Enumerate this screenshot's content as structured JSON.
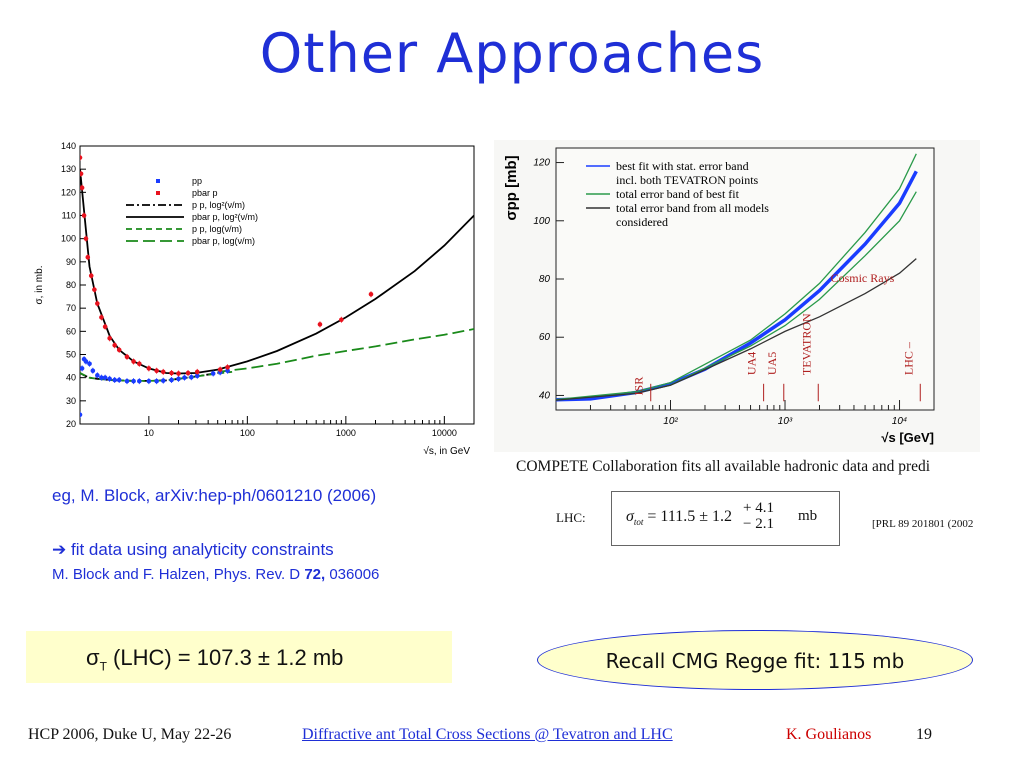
{
  "slide": {
    "title": "Other Approaches",
    "reference_1": "eg, M. Block, arXiv:hep-ph/0601210 (2006)",
    "reference_2_arrow": "➔",
    "reference_2": "fit data using analyticity constraints",
    "reference_3_prefix": "M. Block and F. Halzen, Phys. Rev. D ",
    "reference_3_volume": "72,",
    "reference_3_suffix": " 036006",
    "sigma_result_symbol": "σ",
    "sigma_result_sub": "T",
    "sigma_result_text": " (LHC) =  107.3 ± 1.2 mb",
    "recall_text": "Recall CMG Regge fit: 115 mb",
    "footer": {
      "conference": "HCP 2006, Duke U, May 22-26",
      "link": "Diffractive ant Total Cross Sections @ Tevatron and LHC",
      "author": "K. Goulianos",
      "page": "19"
    }
  },
  "right_panel": {
    "caption": "COMPETE Collaboration fits all available hadronic data and predi",
    "lhc_label": "LHC:",
    "formula_sigma": "σ",
    "formula_sub": "tot",
    "formula_eq": " = 111.5 ± 1.2",
    "formula_plus": "+ 4.1",
    "formula_minus": "− 2.1",
    "formula_unit": "mb",
    "prl": "[PRL 89 201801 (2002"
  },
  "chart_data": [
    {
      "type": "scatter",
      "title": "",
      "xlabel": "√s, in GeV",
      "ylabel": "σ, in mb.",
      "x_scale": "log",
      "xlim": [
        2,
        20000
      ],
      "ylim": [
        20,
        140
      ],
      "x_ticks": [
        10,
        100,
        1000,
        10000
      ],
      "x_tick_labels": [
        "10",
        "100",
        "1000",
        "10000"
      ],
      "y_ticks": [
        20,
        30,
        40,
        50,
        60,
        70,
        80,
        90,
        100,
        110,
        120,
        130,
        140
      ],
      "legend_position": "top-center",
      "legend": [
        {
          "label": "pp",
          "style": "marker",
          "color": "#1a3cff"
        },
        {
          "label": "pbar p",
          "style": "marker",
          "color": "#e8121e"
        },
        {
          "label": "p p,       log²(ν/m)",
          "style": "dashdot",
          "color": "#000000"
        },
        {
          "label": "pbar p, log²(ν/m)",
          "style": "solid",
          "color": "#000000"
        },
        {
          "label": "p p,       log(ν/m)",
          "style": "dashed",
          "color": "#1a8a1a"
        },
        {
          "label": "pbar p, log(ν/m)",
          "style": "longdash",
          "color": "#1a8a1a"
        }
      ],
      "series": [
        {
          "name": "pp",
          "color": "#1a3cff",
          "x": [
            2.0,
            2.1,
            2.2,
            2.3,
            2.5,
            2.7,
            3.0,
            3.3,
            3.6,
            4.0,
            4.5,
            5.0,
            6.0,
            7.0,
            8.0,
            10,
            12,
            14,
            17,
            20,
            23,
            27,
            31,
            45,
            53,
            63
          ],
          "y": [
            24,
            44,
            48,
            47,
            46,
            43,
            41,
            40,
            40,
            39.5,
            39,
            39,
            38.5,
            38.5,
            38.5,
            38.5,
            38.5,
            38.7,
            39,
            39.5,
            40,
            40.2,
            40.8,
            41.8,
            42.3,
            43
          ]
        },
        {
          "name": "pbar p",
          "color": "#e8121e",
          "x": [
            2.0,
            2.05,
            2.1,
            2.2,
            2.3,
            2.4,
            2.6,
            2.8,
            3.0,
            3.3,
            3.6,
            4.0,
            4.5,
            5.0,
            6.0,
            7.0,
            8.0,
            10,
            12,
            14,
            17,
            20,
            25,
            31,
            53,
            63,
            546,
            900,
            1800
          ],
          "y": [
            135,
            128,
            122,
            110,
            100,
            92,
            84,
            78,
            72,
            66,
            62,
            57,
            54,
            52,
            49,
            47,
            46,
            44,
            43,
            42.5,
            42,
            41.8,
            42,
            42.5,
            43.5,
            44.5,
            63,
            65,
            76
          ]
        }
      ],
      "fit_curves": [
        {
          "name": "pbar p, log²(ν/m)",
          "color": "#000000",
          "style": "solid",
          "x": [
            2,
            2.5,
            3,
            4,
            5,
            7,
            10,
            15,
            20,
            30,
            50,
            100,
            200,
            500,
            1000,
            2000,
            5000,
            10000,
            20000
          ],
          "y": [
            130,
            88,
            72,
            58,
            52,
            47,
            44,
            42,
            41.8,
            42,
            43.5,
            47,
            51.5,
            59,
            66,
            74,
            86,
            97,
            110
          ]
        },
        {
          "name": "p p, log²(ν/m)",
          "color": "#000000",
          "style": "dashdot",
          "x": [
            2,
            2.2,
            2.5,
            3,
            4,
            5,
            7,
            10,
            15,
            20,
            30,
            50
          ],
          "y": [
            42,
            41,
            40,
            39.5,
            39,
            38.8,
            38.6,
            38.6,
            38.8,
            39.5,
            40.5,
            42
          ]
        },
        {
          "name": "p p, log(ν/m)",
          "color": "#1a8a1a",
          "style": "dashed",
          "x": [
            2,
            2.5,
            3,
            4,
            5,
            7,
            10,
            15,
            20,
            30,
            50,
            70
          ],
          "y": [
            42,
            40,
            39.5,
            39,
            38.8,
            38.6,
            38.6,
            38.8,
            39.5,
            40.5,
            41.8,
            42.5
          ]
        },
        {
          "name": "pbar p, log(ν/m)",
          "color": "#1a8a1a",
          "style": "longdash",
          "x": [
            50,
            100,
            200,
            500,
            1000,
            2000,
            5000,
            10000,
            20000
          ],
          "y": [
            42.5,
            44,
            46,
            49.5,
            51.5,
            53.5,
            56.5,
            58.5,
            61
          ]
        }
      ]
    },
    {
      "type": "line",
      "title": "",
      "xlabel": "√s [GeV]",
      "ylabel": "σpp [mb]",
      "x_scale": "log",
      "xlim": [
        10,
        20000
      ],
      "ylim": [
        35,
        125
      ],
      "x_ticks": [
        100,
        1000,
        10000
      ],
      "x_tick_labels": [
        "10²",
        "10³",
        "10⁴"
      ],
      "y_ticks": [
        40,
        60,
        80,
        100,
        120
      ],
      "legend_position": "top-left",
      "legend": [
        {
          "label": "best fit with stat. error band",
          "label_2": "incl. both TEVATRON points",
          "color": "#1a3cff"
        },
        {
          "label": "total error band of best fit",
          "color": "#2a9a4a"
        },
        {
          "label": "total error band from all models",
          "label_2": "considered",
          "color": "#333333"
        }
      ],
      "annotations": [
        "ISR",
        "UA4",
        "UA5",
        "TEVATRON",
        "LHC –",
        "Cosmic Rays"
      ],
      "series": [
        {
          "name": "best fit",
          "color": "#1a3cff",
          "x": [
            10,
            20,
            50,
            100,
            200,
            500,
            1000,
            2000,
            5000,
            10000,
            14000
          ],
          "y": [
            38.5,
            38.8,
            41,
            44,
            49,
            58,
            66,
            76,
            92,
            106,
            117
          ]
        },
        {
          "name": "total error band upper",
          "color": "#2a9a4a",
          "x": [
            10,
            50,
            100,
            500,
            1000,
            2000,
            5000,
            10000,
            14000
          ],
          "y": [
            38.6,
            41.3,
            44.4,
            59,
            68,
            78.5,
            96,
            111,
            123
          ]
        },
        {
          "name": "total error band lower",
          "color": "#2a9a4a",
          "x": [
            10,
            50,
            100,
            500,
            1000,
            2000,
            5000,
            10000,
            14000
          ],
          "y": [
            38.4,
            40.7,
            43.6,
            57,
            64,
            73,
            88,
            100,
            110
          ]
        },
        {
          "name": "all models lower",
          "color": "#333333",
          "x": [
            10,
            50,
            100,
            500,
            1000,
            2000,
            5000,
            10000,
            14000
          ],
          "y": [
            38.4,
            40.7,
            43.5,
            56,
            62,
            67,
            75,
            82,
            87
          ]
        }
      ]
    }
  ]
}
